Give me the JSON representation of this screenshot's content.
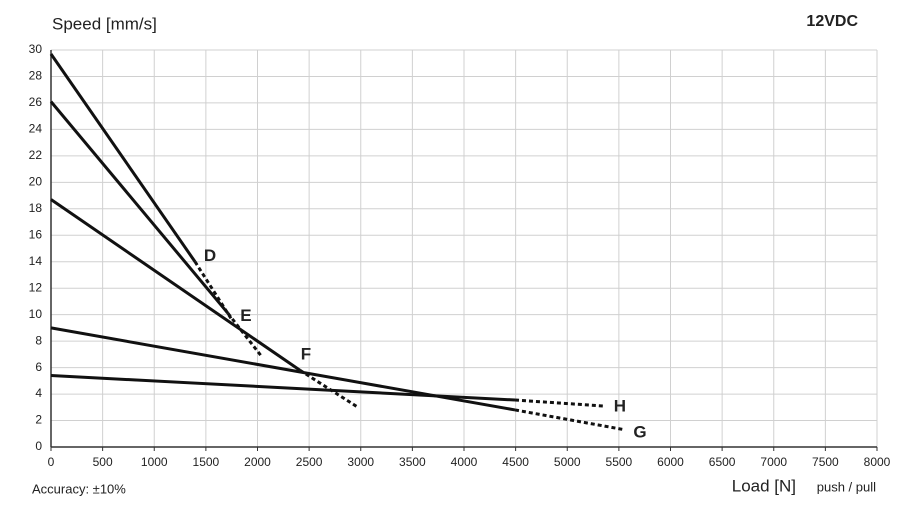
{
  "chart_data": {
    "type": "line",
    "title": "12VDC",
    "y_label": "Speed [mm/s]",
    "x_label": "Load [N]",
    "x_label_note": "push / pull",
    "note": "Accuracy: ±10%",
    "xlim": [
      0,
      8000
    ],
    "xticks": [
      0,
      500,
      1000,
      1500,
      2000,
      2500,
      3000,
      3500,
      4000,
      4500,
      5000,
      5500,
      6000,
      6500,
      7000,
      7500,
      8000
    ],
    "ylim": [
      0,
      30
    ],
    "yticks": [
      0,
      2,
      4,
      6,
      8,
      10,
      12,
      14,
      16,
      18,
      20,
      22,
      24,
      26,
      28,
      30
    ],
    "grid": true,
    "series": [
      {
        "name": "D",
        "color": "#111111",
        "x": [
          0,
          1395,
          1753
        ],
        "values": [
          29.7,
          14.0,
          9.6
        ],
        "solid_points": 2
      },
      {
        "name": "E",
        "color": "#111111",
        "x": [
          0,
          1714,
          2044
        ],
        "values": [
          26.1,
          10.1,
          6.8
        ],
        "solid_points": 2
      },
      {
        "name": "F",
        "color": "#111111",
        "x": [
          0,
          2411,
          2973
        ],
        "values": [
          18.7,
          5.8,
          3.0
        ],
        "solid_points": 2
      },
      {
        "name": "G",
        "color": "#111111",
        "x": [
          0,
          4494,
          5559
        ],
        "values": [
          9.0,
          2.8,
          1.3
        ],
        "solid_points": 2
      },
      {
        "name": "H",
        "color": "#111111",
        "x": [
          0,
          4494,
          5345
        ],
        "values": [
          5.4,
          3.55,
          3.1
        ],
        "solid_points": 2
      }
    ]
  }
}
